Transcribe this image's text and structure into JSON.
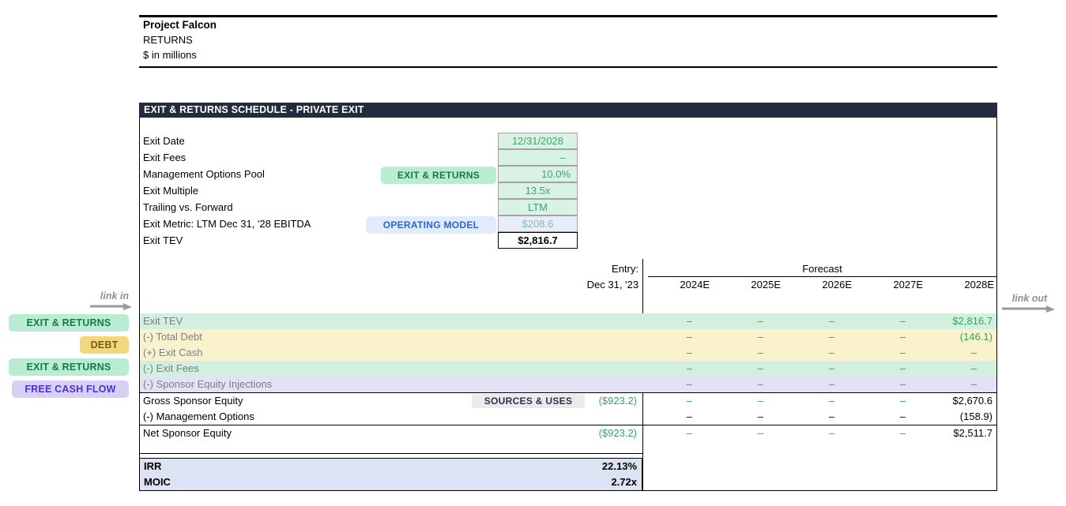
{
  "header": {
    "title": "Project Falcon",
    "subtitle": "RETURNS",
    "units": "$ in millions"
  },
  "section": {
    "title": "EXIT & RETURNS SCHEDULE - PRIVATE EXIT"
  },
  "assumptions": {
    "rows": [
      {
        "label": "Exit Date",
        "value": "12/31/2028",
        "style": "input"
      },
      {
        "label": "Exit Fees",
        "value": "–",
        "style": "input"
      },
      {
        "label": "Management Options Pool",
        "value": "10.0%",
        "style": "input",
        "badge": {
          "label": "EXIT & RETURNS",
          "type": "mint"
        }
      },
      {
        "label": "Exit Multiple",
        "value": "13.5x",
        "style": "input"
      },
      {
        "label": "Trailing vs. Forward",
        "value": "LTM",
        "style": "input"
      },
      {
        "label": "Exit Metric: LTM Dec 31, '28 EBITDA",
        "value": "$208.6",
        "style": "linked",
        "badge": {
          "label": "OPERATING MODEL",
          "type": "blue"
        }
      },
      {
        "label": "Exit TEV",
        "value": "$2,816.7",
        "style": "output"
      }
    ]
  },
  "table": {
    "entry_header": "Entry:",
    "entry_subheader": "Dec 31, '23",
    "forecast_header": "Forecast",
    "columns": [
      "2024E",
      "2025E",
      "2026E",
      "2027E",
      "2028E"
    ],
    "rows": [
      {
        "label": "Exit TEV",
        "band": "mint",
        "entry": "",
        "values": [
          "–",
          "–",
          "–",
          "–",
          "$2,816.7"
        ],
        "dash_tone": "green",
        "final_tone": "green"
      },
      {
        "label": "(-) Total Debt",
        "band": "yellow",
        "entry": "",
        "values": [
          "–",
          "–",
          "–",
          "–",
          "(146.1)"
        ],
        "dash_tone": "green",
        "final_tone": "green"
      },
      {
        "label": "(+) Exit Cash",
        "band": "yellow",
        "entry": "",
        "values": [
          "–",
          "–",
          "–",
          "–",
          "–"
        ],
        "dash_tone": "green",
        "final_tone": "green"
      },
      {
        "label": "(-) Exit Fees",
        "band": "mint",
        "entry": "",
        "values": [
          "–",
          "–",
          "–",
          "–",
          "–"
        ],
        "dash_tone": "green",
        "final_tone": "green"
      },
      {
        "label": "(-) Sponsor Equity Injections",
        "band": "lavender",
        "entry": "",
        "values": [
          "–",
          "–",
          "–",
          "–",
          "–"
        ],
        "dash_tone": "green",
        "final_tone": "green"
      },
      {
        "label": "Gross Sponsor Equity",
        "band": "plain",
        "entry": "($923.2)",
        "entry_tone": "green",
        "badge": {
          "label": "SOURCES & USES",
          "type": "gray"
        },
        "values": [
          "–",
          "–",
          "–",
          "–",
          "$2,670.6"
        ],
        "dash_tone": "green",
        "final_tone": "black"
      },
      {
        "label": "(-) Management Options",
        "band": "plain",
        "entry": "",
        "values": [
          "–",
          "–",
          "–",
          "–",
          "(158.9)"
        ],
        "dash_tone": "black",
        "final_tone": "black"
      },
      {
        "label": "Net Sponsor Equity",
        "band": "plain",
        "entry": "($923.2)",
        "entry_tone": "green",
        "values": [
          "–",
          "–",
          "–",
          "–",
          "$2,511.7"
        ],
        "dash_tone": "green",
        "final_tone": "black"
      }
    ],
    "metrics": [
      {
        "label": "IRR",
        "value": "22.13%"
      },
      {
        "label": "MOIC",
        "value": "2.72x"
      }
    ]
  },
  "side_labels": {
    "link_in": "link in",
    "link_out": "link out",
    "pills": [
      {
        "label": "EXIT & RETURNS",
        "type": "mint"
      },
      {
        "label": "DEBT",
        "type": "gold"
      },
      {
        "label": "EXIT & RETURNS",
        "type": "mint"
      },
      {
        "label": "FREE CASH FLOW",
        "type": "purple"
      }
    ]
  },
  "colors": {
    "accent_navy": "#242b3c",
    "band_mint": "#d2efdf",
    "band_yellow": "#faf1cd",
    "band_lavender": "#e4e1f6",
    "input_bg": "#d8f3e4",
    "input_text": "#3fa471",
    "linked_bg": "#e7edfb",
    "linked_text": "#7cc29c",
    "metrics_bg": "#dce4f3",
    "pill_mint_bg": "#b9ecd3",
    "pill_mint_text": "#17784a",
    "pill_gold_bg": "#f3d77b",
    "pill_gold_text": "#7d5a10",
    "pill_purple_bg": "#d7d0f5",
    "pill_purple_text": "#5230cf",
    "badge_blue_bg": "#e2ebfb",
    "badge_blue_text": "#2d62cf",
    "badge_gray_bg": "#ebebeb",
    "badge_gray_text": "#283349",
    "value_green": "#35a265",
    "muted_label": "#7b7f82",
    "link_gray": "#8f8f8f"
  }
}
